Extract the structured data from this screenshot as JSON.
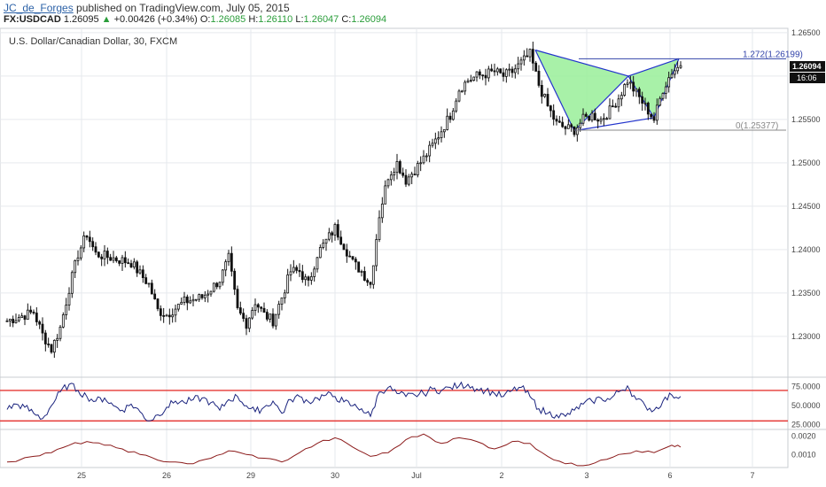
{
  "header": {
    "author": "JC_de_Forges",
    "published": " published on TradingView.com, July 05, 2015",
    "symbol": "FX:USDCAD",
    "last": "1.26095",
    "change": "+0.00426 (+0.34%)",
    "open_label": "O:",
    "open": "1.26085",
    "high_label": "H:",
    "high": "1.26110",
    "low_label": "L:",
    "low": "1.26047",
    "close_label": "C:",
    "close": "1.26094"
  },
  "chart_title": "U.S. Dollar/Canadian Dollar, 30, FXCM",
  "price_tags": {
    "last_price": "1.26094",
    "countdown": "16:06"
  },
  "fib_labels": {
    "ext": "1.272(1.26199)",
    "base": "0(1.25377)"
  },
  "chart_data": [
    {
      "type": "candlestick",
      "title": "U.S. Dollar/Canadian Dollar, 30, FXCM",
      "y_ticks": [
        "1.26500",
        "1.26000",
        "1.25500",
        "1.25000",
        "1.24500",
        "1.24000",
        "1.23500",
        "1.23000"
      ],
      "x_ticks": [
        "25",
        "26",
        "29",
        "30",
        "Jul",
        "2",
        "3",
        "6",
        "7"
      ],
      "ylim": [
        1.2255,
        1.2655
      ],
      "grid": true,
      "path": [
        [
          0,
          1.2318
        ],
        [
          3,
          1.2328
        ],
        [
          4,
          1.2302
        ],
        [
          5,
          1.2285
        ],
        [
          6,
          1.231
        ],
        [
          7,
          1.2355
        ],
        [
          8,
          1.2395
        ],
        [
          9,
          1.2418
        ],
        [
          10,
          1.2395
        ],
        [
          12,
          1.239
        ],
        [
          14,
          1.2385
        ],
        [
          15,
          1.2372
        ],
        [
          16,
          1.236
        ],
        [
          17,
          1.233
        ],
        [
          18,
          1.2325
        ],
        [
          20,
          1.234
        ],
        [
          22,
          1.2345
        ],
        [
          24,
          1.2365
        ],
        [
          25,
          1.239
        ],
        [
          26,
          1.233
        ],
        [
          27,
          1.2315
        ],
        [
          28,
          1.234
        ],
        [
          29,
          1.2325
        ],
        [
          30,
          1.2318
        ],
        [
          31,
          1.2345
        ],
        [
          32,
          1.2375
        ],
        [
          33,
          1.2375
        ],
        [
          34,
          1.236
        ],
        [
          35,
          1.2395
        ],
        [
          36,
          1.241
        ],
        [
          37,
          1.2425
        ],
        [
          38,
          1.2405
        ],
        [
          39,
          1.2385
        ],
        [
          40,
          1.2375
        ],
        [
          41,
          1.236
        ],
        [
          42,
          1.244
        ],
        [
          43,
          1.2485
        ],
        [
          44,
          1.25
        ],
        [
          45,
          1.248
        ],
        [
          46,
          1.2492
        ],
        [
          47,
          1.2505
        ],
        [
          48,
          1.252
        ],
        [
          50,
          1.2555
        ],
        [
          51,
          1.2585
        ],
        [
          52,
          1.2595
        ],
        [
          53,
          1.26
        ],
        [
          55,
          1.2605
        ],
        [
          56,
          1.26
        ],
        [
          57,
          1.2605
        ],
        [
          58,
          1.2615
        ],
        [
          59,
          1.2625
        ],
        [
          60,
          1.259
        ],
        [
          61,
          1.2565
        ],
        [
          62,
          1.2545
        ],
        [
          63,
          1.254
        ],
        [
          64,
          1.2538
        ],
        [
          65,
          1.255
        ],
        [
          66,
          1.2555
        ],
        [
          67,
          1.255
        ],
        [
          68,
          1.256
        ],
        [
          69,
          1.2575
        ],
        [
          70,
          1.2595
        ],
        [
          71,
          1.258
        ],
        [
          72,
          1.2565
        ],
        [
          73,
          1.255
        ],
        [
          74,
          1.2585
        ],
        [
          75,
          1.2605
        ],
        [
          76,
          1.2612
        ]
      ]
    },
    {
      "type": "line",
      "series": [
        {
          "name": "",
          "color": "#1a237e"
        }
      ],
      "y_ticks": [
        "75.0000",
        "50.0000",
        "25.0000"
      ],
      "levels": [
        70,
        30
      ],
      "ylim": [
        20,
        85
      ],
      "path": [
        [
          0,
          45
        ],
        [
          1,
          52
        ],
        [
          2,
          48
        ],
        [
          3,
          40
        ],
        [
          4,
          33
        ],
        [
          5,
          50
        ],
        [
          6,
          68
        ],
        [
          7,
          78
        ],
        [
          8,
          70
        ],
        [
          9,
          62
        ],
        [
          10,
          56
        ],
        [
          11,
          60
        ],
        [
          12,
          50
        ],
        [
          13,
          44
        ],
        [
          14,
          52
        ],
        [
          15,
          42
        ],
        [
          16,
          30
        ],
        [
          17,
          38
        ],
        [
          18,
          48
        ],
        [
          19,
          56
        ],
        [
          20,
          54
        ],
        [
          21,
          58
        ],
        [
          22,
          60
        ],
        [
          23,
          54
        ],
        [
          24,
          44
        ],
        [
          25,
          58
        ],
        [
          26,
          62
        ],
        [
          27,
          50
        ],
        [
          28,
          42
        ],
        [
          29,
          48
        ],
        [
          30,
          56
        ],
        [
          31,
          40
        ],
        [
          32,
          58
        ],
        [
          33,
          62
        ],
        [
          34,
          55
        ],
        [
          35,
          60
        ],
        [
          36,
          64
        ],
        [
          37,
          62
        ],
        [
          38,
          55
        ],
        [
          39,
          50
        ],
        [
          40,
          46
        ],
        [
          41,
          36
        ],
        [
          42,
          68
        ],
        [
          43,
          74
        ],
        [
          44,
          66
        ],
        [
          45,
          62
        ],
        [
          46,
          64
        ],
        [
          47,
          66
        ],
        [
          48,
          72
        ],
        [
          49,
          70
        ],
        [
          50,
          74
        ],
        [
          51,
          76
        ],
        [
          52,
          78
        ],
        [
          53,
          72
        ],
        [
          54,
          70
        ],
        [
          55,
          66
        ],
        [
          56,
          62
        ],
        [
          57,
          70
        ],
        [
          58,
          74
        ],
        [
          59,
          62
        ],
        [
          60,
          46
        ],
        [
          61,
          40
        ],
        [
          62,
          38
        ],
        [
          63,
          36
        ],
        [
          64,
          44
        ],
        [
          65,
          52
        ],
        [
          66,
          56
        ],
        [
          67,
          60
        ],
        [
          68,
          58
        ],
        [
          69,
          68
        ],
        [
          70,
          76
        ],
        [
          71,
          58
        ],
        [
          72,
          50
        ],
        [
          73,
          44
        ],
        [
          74,
          56
        ],
        [
          75,
          64
        ],
        [
          76,
          62
        ]
      ]
    },
    {
      "type": "line",
      "series": [
        {
          "name": "",
          "color": "#8b1a1a"
        }
      ],
      "y_ticks": [
        "0.0020",
        "0.0010"
      ],
      "ylim": [
        0.0003,
        0.0023
      ],
      "path": [
        [
          0,
          0.0006
        ],
        [
          3,
          0.0009
        ],
        [
          5,
          0.0011
        ],
        [
          7,
          0.0015
        ],
        [
          9,
          0.0017
        ],
        [
          11,
          0.0015
        ],
        [
          13,
          0.0013
        ],
        [
          15,
          0.001
        ],
        [
          17,
          0.0007
        ],
        [
          19,
          0.0006
        ],
        [
          21,
          0.0005
        ],
        [
          23,
          0.0008
        ],
        [
          25,
          0.0012
        ],
        [
          27,
          0.001
        ],
        [
          29,
          0.0008
        ],
        [
          31,
          0.0006
        ],
        [
          33,
          0.0011
        ],
        [
          35,
          0.0016
        ],
        [
          37,
          0.0019
        ],
        [
          39,
          0.0014
        ],
        [
          41,
          0.0009
        ],
        [
          43,
          0.0011
        ],
        [
          45,
          0.0018
        ],
        [
          47,
          0.0021
        ],
        [
          49,
          0.0016
        ],
        [
          51,
          0.0019
        ],
        [
          53,
          0.0017
        ],
        [
          55,
          0.0013
        ],
        [
          57,
          0.0017
        ],
        [
          59,
          0.0016
        ],
        [
          61,
          0.0009
        ],
        [
          63,
          0.0005
        ],
        [
          65,
          0.0004
        ],
        [
          67,
          0.0007
        ],
        [
          69,
          0.001
        ],
        [
          71,
          0.0012
        ],
        [
          73,
          0.0011
        ],
        [
          75,
          0.0015
        ],
        [
          76,
          0.0014
        ]
      ]
    }
  ],
  "pattern": {
    "points": [
      [
        59.6,
        1.263
      ],
      [
        64.0,
        1.2537
      ],
      [
        70.1,
        1.26
      ],
      [
        73.0,
        1.2552
      ],
      [
        75.8,
        1.262
      ]
    ],
    "fill": "#99ee99",
    "stroke": "#2233cc"
  },
  "colors": {
    "candle": "#111111",
    "grid": "#e6e9ee",
    "level": "#e53935",
    "fib_ext": "#3344aa",
    "fib_base": "#888888"
  }
}
